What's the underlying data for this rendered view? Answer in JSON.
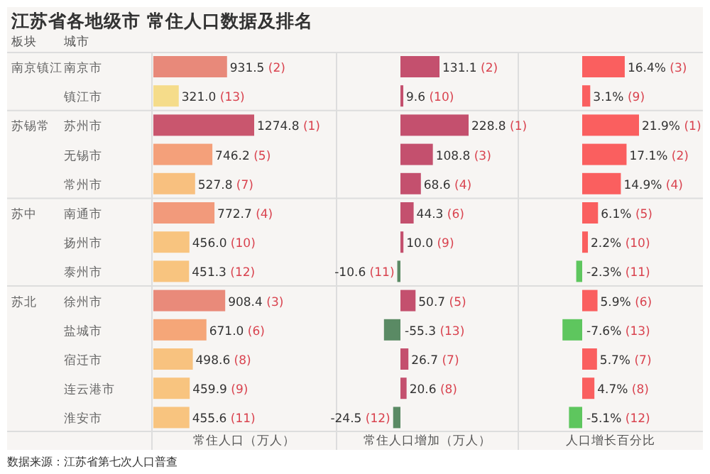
{
  "chart_data": [
    {
      "type": "bar",
      "orientation": "horizontal",
      "title": "江苏省各地级市 常住人口数据及排名",
      "xlabel": "常住人口（万人）",
      "categories": [
        "南京市",
        "镇江市",
        "苏州市",
        "无锡市",
        "常州市",
        "南通市",
        "扬州市",
        "泰州市",
        "徐州市",
        "盐城市",
        "宿迁市",
        "连云港市",
        "淮安市"
      ],
      "values": [
        931.5,
        321.0,
        1274.8,
        746.2,
        527.8,
        772.7,
        456.0,
        451.3,
        908.4,
        671.0,
        498.6,
        459.9,
        455.6
      ],
      "colors": [
        "#e8897a",
        "#f5dc8a",
        "#c9566e",
        "#f4a07a",
        "#f8c07f",
        "#f29a7b",
        "#f8c47f",
        "#f8c47f",
        "#e98a7a",
        "#f5a678",
        "#f8c27f",
        "#f8c47f",
        "#f8c47f"
      ],
      "value_labels": [
        "931.5 (2)",
        "321.0 (13)",
        "1274.8 (1)",
        "746.2 (5)",
        "527.8 (7)",
        "772.7 (4)",
        "456.0 (10)",
        "451.3 (12)",
        "908.4 (3)",
        "671.0 (6)",
        "498.6 (8)",
        "459.9 (9)",
        "455.6 (11)"
      ],
      "annotations": [
        "板块",
        "城市",
        "南京镇江",
        "苏锡常",
        "苏中",
        "苏北",
        "数据来源：江苏省第七次人口普查"
      ]
    },
    {
      "type": "bar",
      "orientation": "horizontal",
      "xlabel": "常住人口增加（万人）",
      "values": [
        131.1,
        9.6,
        228.8,
        108.8,
        68.6,
        44.3,
        10.0,
        -10.6,
        50.7,
        -55.3,
        26.7,
        20.6,
        -24.5
      ],
      "colors": [
        "#c4506e",
        "#c4506e",
        "#c4506e",
        "#c4506e",
        "#c4506e",
        "#c4506e",
        "#c4506e",
        "#5a8a64",
        "#c4506e",
        "#5a8a64",
        "#c4506e",
        "#c4506e",
        "#5a8a64"
      ],
      "value_labels": [
        "131.1 (2)",
        "9.6 (10)",
        "228.8 (1)",
        "108.8 (3)",
        "68.6 (4)",
        "44.3 (6)",
        "10.0 (9)",
        "-10.6 (11)",
        "50.7 (5)",
        "-55.3 (13)",
        "26.7 (7)",
        "20.6 (8)",
        "-24.5 (12)"
      ]
    },
    {
      "type": "bar",
      "orientation": "horizontal",
      "xlabel": "人口增长百分比",
      "values": [
        16.4,
        3.1,
        21.9,
        17.1,
        14.9,
        6.1,
        2.2,
        -2.3,
        5.9,
        -7.6,
        5.7,
        4.7,
        -5.1
      ],
      "colors": [
        "#fa5f5f",
        "#fa5f5f",
        "#fa5f5f",
        "#fa5f5f",
        "#fa5f5f",
        "#fa5f5f",
        "#fa5f5f",
        "#5ec65e",
        "#fa5f5f",
        "#5ec65e",
        "#fa5f5f",
        "#fa5f5f",
        "#5ec65e"
      ],
      "value_labels": [
        "16.4% (3)",
        "3.1% (9)",
        "21.9% (1)",
        "17.1% (2)",
        "14.9% (4)",
        "6.1% (5)",
        "2.2% (10)",
        "-2.3% (11)",
        "5.9% (6)",
        "-7.6% (13)",
        "5.7% (7)",
        "4.7% (8)",
        "-5.1% (12)"
      ]
    }
  ]
}
